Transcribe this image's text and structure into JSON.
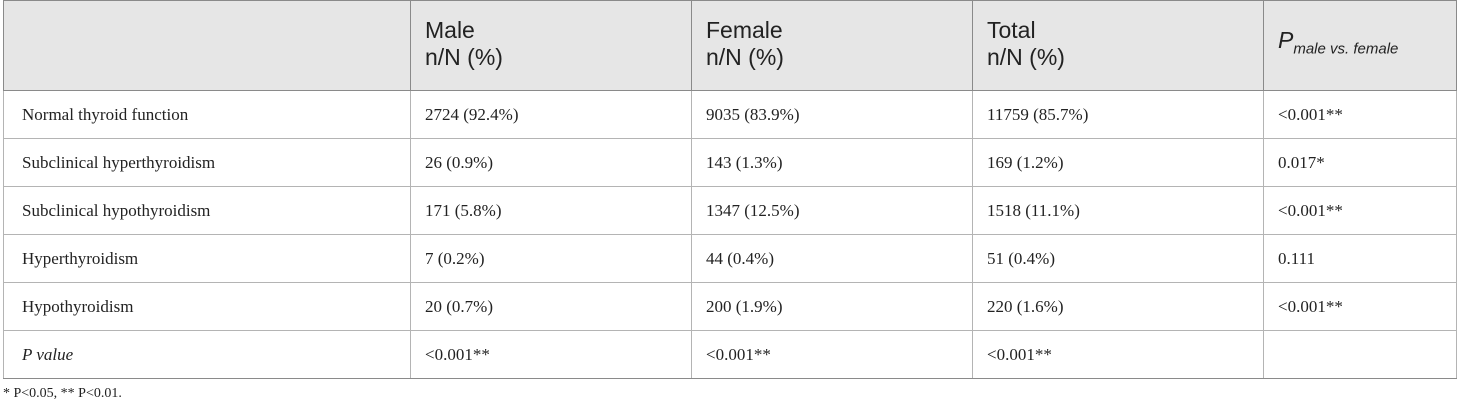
{
  "table": {
    "header": {
      "c0": "",
      "c1": [
        "Male",
        "n/N (%)"
      ],
      "c2": [
        "Female",
        "n/N (%)"
      ],
      "c3": [
        "Total",
        "n/N (%)"
      ],
      "c4": {
        "main": "P",
        "sub": "male vs. female"
      }
    },
    "rows": [
      {
        "label": "Normal thyroid function",
        "male": "2724 (92.4%)",
        "female": "9035 (83.9%)",
        "total": "11759 (85.7%)",
        "p": "<0.001**"
      },
      {
        "label": "Subclinical hyperthyroidism",
        "male": "26 (0.9%)",
        "female": "143 (1.3%)",
        "total": "169 (1.2%)",
        "p": "0.017*"
      },
      {
        "label": "Subclinical hypothyroidism",
        "male": "171 (5.8%)",
        "female": "1347 (12.5%)",
        "total": "1518 (11.1%)",
        "p": "<0.001**"
      },
      {
        "label": "Hyperthyroidism",
        "male": "7 (0.2%)",
        "female": "44 (0.4%)",
        "total": "51 (0.4%)",
        "p": "0.111"
      },
      {
        "label": "Hypothyroidism",
        "male": "20 (0.7%)",
        "female": "200 (1.9%)",
        "total": "220 (1.6%)",
        "p": "<0.001**"
      },
      {
        "label": "P value",
        "male": "<0.001**",
        "female": "<0.001**",
        "total": "<0.001**",
        "p": ""
      }
    ]
  },
  "footnote": "* P<0.05, ** P<0.01."
}
